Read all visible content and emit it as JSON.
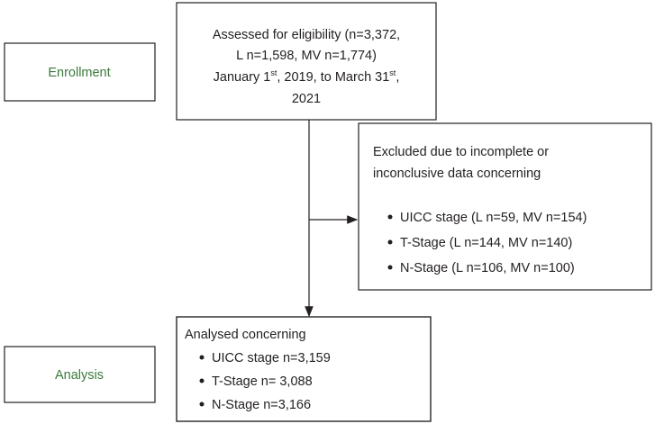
{
  "stages": {
    "enrollment": "Enrollment",
    "analysis": "Analysis"
  },
  "assessed": {
    "line1": "Assessed for eligibility (n=3,372,",
    "line2": "L n=1,598, MV n=1,774)",
    "line3": [
      "January 1",
      "st",
      ", 2019, to March 31",
      "st",
      ","
    ],
    "line4": "2021"
  },
  "excluded": {
    "heading": [
      "Excluded due to incomplete or",
      "inconclusive data concerning"
    ],
    "items": [
      "UICC stage (L n=59, MV n=154)",
      "T-Stage (L n=144, MV n=140)",
      "N-Stage (L n=106, MV n=100)"
    ]
  },
  "analysed": {
    "heading": "Analysed concerning",
    "items": [
      "UICC stage n=3,159",
      "T-Stage n= 3,088",
      "N-Stage n=3,166"
    ]
  }
}
